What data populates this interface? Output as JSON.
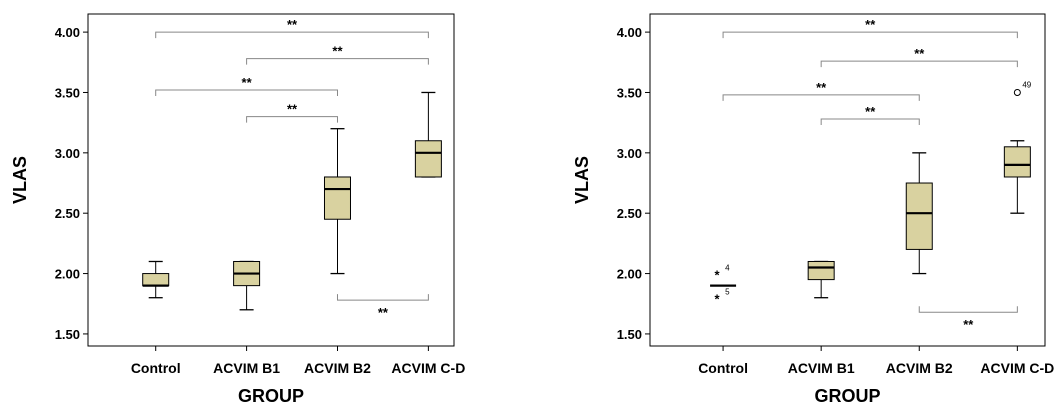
{
  "chart_data": [
    {
      "type": "box",
      "xlabel": "GROUP",
      "ylabel": "VLAS",
      "ylim": [
        1.4,
        4.15
      ],
      "ytick_labels": [
        "1.50",
        "2.00",
        "2.50",
        "3.00",
        "3.50",
        "4.00"
      ],
      "categories": [
        "Control",
        "ACVIM B1",
        "ACVIM B2",
        "ACVIM C-D"
      ],
      "box_color": "#d9d2a0",
      "boxes": [
        {
          "min": 1.8,
          "q1": 1.9,
          "median": 1.9,
          "q3": 2.0,
          "max": 2.1
        },
        {
          "min": 1.7,
          "q1": 1.9,
          "median": 2.0,
          "q3": 2.1,
          "max": 2.1
        },
        {
          "min": 2.0,
          "q1": 2.45,
          "median": 2.7,
          "q3": 2.8,
          "max": 3.2
        },
        {
          "min": 2.8,
          "q1": 2.8,
          "median": 3.0,
          "q3": 3.1,
          "max": 3.5
        }
      ],
      "outliers": [],
      "significance": [
        {
          "from": 0,
          "to": 3,
          "y": 4.0,
          "label": "**",
          "side": "above"
        },
        {
          "from": 1,
          "to": 3,
          "y": 3.78,
          "label": "**",
          "side": "above"
        },
        {
          "from": 0,
          "to": 2,
          "y": 3.52,
          "label": "**",
          "side": "above"
        },
        {
          "from": 1,
          "to": 2,
          "y": 3.3,
          "label": "**",
          "side": "above"
        },
        {
          "from": 2,
          "to": 3,
          "y": 1.78,
          "label": "**",
          "side": "below"
        }
      ]
    },
    {
      "type": "box",
      "xlabel": "GROUP",
      "ylabel": "VLAS",
      "ylim": [
        1.4,
        4.15
      ],
      "ytick_labels": [
        "1.50",
        "2.00",
        "2.50",
        "3.00",
        "3.50",
        "4.00"
      ],
      "categories": [
        "Control",
        "ACVIM B1",
        "ACVIM B2",
        "ACVIM C-D"
      ],
      "box_color": "#d9d2a0",
      "boxes": [
        {
          "min": 1.9,
          "q1": 1.9,
          "median": 1.9,
          "q3": 1.9,
          "max": 1.9
        },
        {
          "min": 1.8,
          "q1": 1.95,
          "median": 2.05,
          "q3": 2.1,
          "max": 2.1
        },
        {
          "min": 2.0,
          "q1": 2.2,
          "median": 2.5,
          "q3": 2.75,
          "max": 3.0
        },
        {
          "min": 2.5,
          "q1": 2.8,
          "median": 2.9,
          "q3": 3.05,
          "max": 3.1
        }
      ],
      "outliers": [
        {
          "group": 0,
          "value": 2.0,
          "marker": "star",
          "label": "4"
        },
        {
          "group": 0,
          "value": 1.8,
          "marker": "star",
          "label": "5"
        },
        {
          "group": 3,
          "value": 3.5,
          "marker": "circle",
          "label": "49"
        }
      ],
      "significance": [
        {
          "from": 0,
          "to": 3,
          "y": 4.0,
          "label": "**",
          "side": "above"
        },
        {
          "from": 1,
          "to": 3,
          "y": 3.76,
          "label": "**",
          "side": "above"
        },
        {
          "from": 0,
          "to": 2,
          "y": 3.48,
          "label": "**",
          "side": "above"
        },
        {
          "from": 1,
          "to": 2,
          "y": 3.28,
          "label": "**",
          "side": "above"
        },
        {
          "from": 2,
          "to": 3,
          "y": 1.68,
          "label": "**",
          "side": "below"
        }
      ]
    }
  ]
}
